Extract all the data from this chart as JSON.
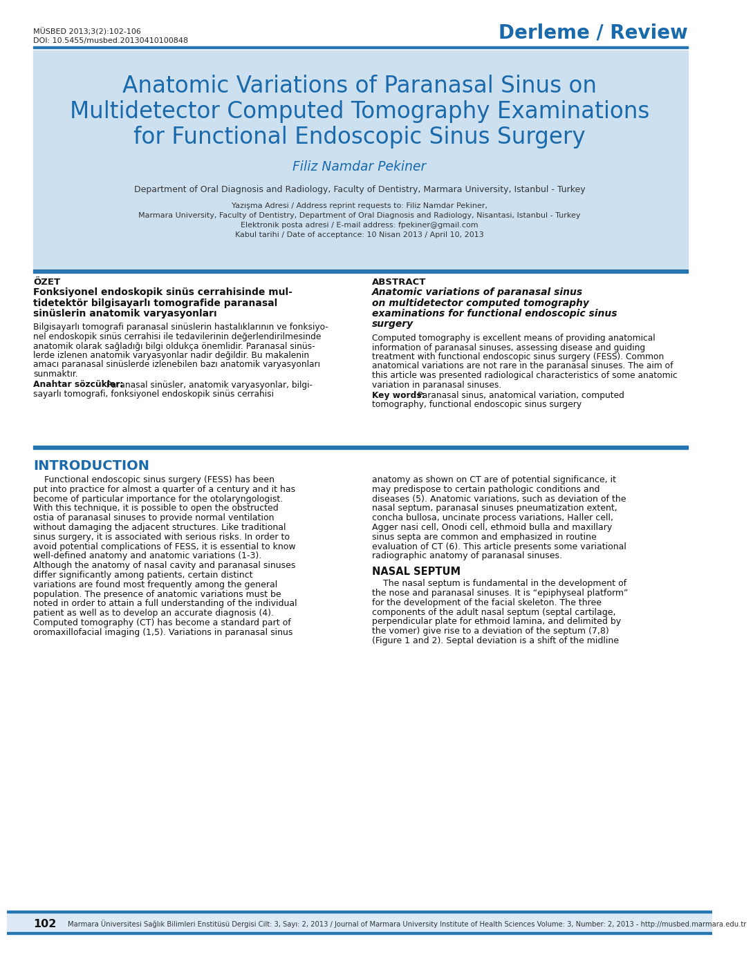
{
  "bg_color": "#ffffff",
  "header_blue": "#1a6aab",
  "title_bg_color": "#cde0f0",
  "top_bar_color": "#2475b0",
  "journal_ref": "MÜSBED 2013;3(2):102-106",
  "doi": "DOI: 10.5455/musbed.20130410100848",
  "review_label": "Derleme / Review",
  "main_title_line1": "Anatomic Variations of Paranasal Sinus on",
  "main_title_line2": "Multidetector Computed Tomography Examinations",
  "main_title_line3": "for Functional Endoscopic Sinus Surgery",
  "author": "Filiz Namdar Pekiner",
  "affiliation": "Department of Oral Diagnosis and Radiology, Faculty of Dentistry, Marmara University, Istanbul - Turkey",
  "corr1": "Yazışma Adresi / Address reprint requests to: Filiz Namdar Pekiner,",
  "corr2": "Marmara University, Faculty of Dentistry, Department of Oral Diagnosis and Radiology, Nisantasi, Istanbul - Turkey",
  "corr3": "Elektronik posta adresi / E-mail address: fpekiner@gmail.com",
  "corr4": "Kabul tarihi / Date of acceptance: 10 Nisan 2013 / April 10, 2013",
  "ozet_label": "ÖZET",
  "ozet_sub1": "Fonksiyonel endoskopik sinüs cerrahisinde mul-",
  "ozet_sub2": "tidetektör bilgisayarlı tomografide paranasal",
  "ozet_sub3": "sinüslerin anatomik varyasyonları",
  "ozet_body_lines": [
    "Bilgisayarlı tomografi paranasal sinüslerin hastalıklarının ve fonksiyo-",
    "nel endoskopik sinüs cerrahisi ile tedavilerinin değerlendirilmesinde",
    "anatomik olarak sağladığı bilgi oldukça önemlidir. Paranasal sinüs-",
    "lerde izlenen anatomik varyasyonlar nadir değildir. Bu makalenin",
    "amacı paranasal sinüslerde izlenebilen bazı anatomik varyasyonları",
    "sunmaktır."
  ],
  "ozet_kw_label": "Anahtar sözcükler:",
  "ozet_kw1": " Paranasal sinüsler, anatomik varyasyonlar, bilgi-",
  "ozet_kw2": "sayarlı tomografi, fonksiyonel endoskopik sinüs cerrahisi",
  "abstract_label": "ABSTRACT",
  "abs_sub1": "Anatomic variations of paranasal sinus",
  "abs_sub2": "on multidetector computed tomography",
  "abs_sub3": "examinations for functional endoscopic sinus",
  "abs_sub4": "surgery",
  "abs_body_lines": [
    "Computed tomography is excellent means of providing anatomical",
    "information of paranasal sinuses, assessing disease and guiding",
    "treatment with functional endoscopic sinus surgery (FESS). Common",
    "anatomical variations are not rare in the paranasal sinuses. The aim of",
    "this article was presented radiological characteristics of some anatomic",
    "variation in paranasal sinuses."
  ],
  "abs_kw_label": "Key words:",
  "abs_kw1": " Paranasal sinus, anatomical variation, computed",
  "abs_kw2": "tomography, functional endoscopic sinus surgery",
  "intro_label": "INTRODUCTION",
  "intro_col1_lines": [
    "    Functional endoscopic sinus surgery (FESS) has been",
    "put into practice for almost a quarter of a century and it has",
    "become of particular importance for the otolaryngologist.",
    "With this technique, it is possible to open the obstructed",
    "ostia of paranasal sinuses to provide normal ventilation",
    "without damaging the adjacent structures. Like traditional",
    "sinus surgery, it is associated with serious risks. In order to",
    "avoid potential complications of FESS, it is essential to know",
    "well-defined anatomy and anatomic variations (1-3).",
    "Although the anatomy of nasal cavity and paranasal sinuses",
    "differ significantly among patients, certain distinct",
    "variations are found most frequently among the general",
    "population. The presence of anatomic variations must be",
    "noted in order to attain a full understanding of the individual",
    "patient as well as to develop an accurate diagnosis (4).",
    "Computed tomography (CT) has become a standard part of",
    "oromaxillofacial imaging (1,5). Variations in paranasal sinus"
  ],
  "intro_col2_lines": [
    "anatomy as shown on CT are of potential significance, it",
    "may predispose to certain pathologic conditions and",
    "diseases (5). Anatomic variations, such as deviation of the",
    "nasal septum, paranasal sinuses pneumatization extent,",
    "concha bullosa, uncinate process variations, Haller cell,",
    "Agger nasi cell, Onodi cell, ethmoid bulla and maxillary",
    "sinus septa are common and emphasized in routine",
    "evaluation of CT (6). This article presents some variational",
    "radiographic anatomy of paranasal sinuses."
  ],
  "nasal_septum_label": "NASAL SEPTUM",
  "nasal_body_lines": [
    "    The nasal septum is fundamental in the development of",
    "the nose and paranasal sinuses. It is “epiphyseal platform”",
    "for the development of the facial skeleton. The three",
    "components of the adult nasal septum (septal cartilage,",
    "perpendicular plate for ethmoid lamina, and delimited by",
    "the vomer) give rise to a deviation of the septum (7,8)",
    "(Figure 1 and 2). Septal deviation is a shift of the midline"
  ],
  "footer_page": "102",
  "footer_text": "Marmara Üniversitesi Sağlık Bilimleri Enstitüsü Dergisi Cilt: 3, Sayı: 2, 2013 / Journal of Marmara University Institute of Health Sciences Volume: 3, Number: 2, 2013 - http://musbed.marmara.edu.tr"
}
